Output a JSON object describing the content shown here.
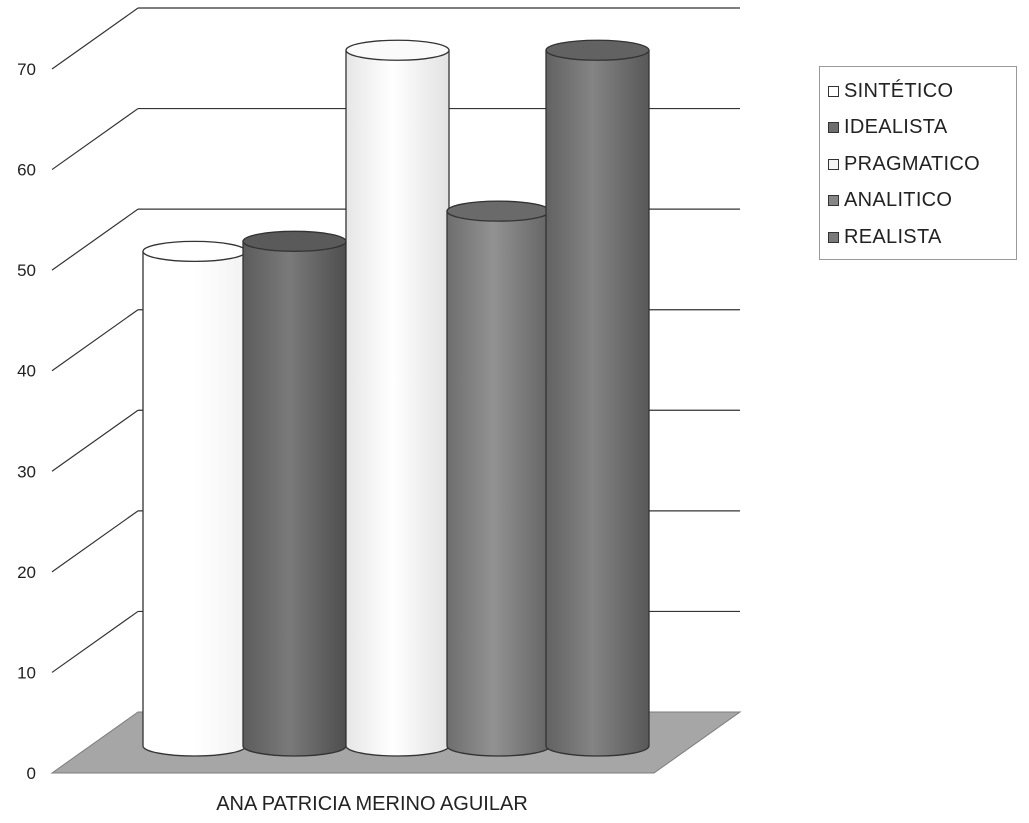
{
  "chart_data": {
    "type": "bar",
    "style": "3d-cylinder",
    "categories": [
      "ANA PATRICIA MERINO AGUILAR"
    ],
    "series": [
      {
        "name": "SINTÉTICO",
        "values": [
          46
        ],
        "color": "#ffffff"
      },
      {
        "name": "IDEALISTA",
        "values": [
          47
        ],
        "color": "#6e6e6e"
      },
      {
        "name": "PRAGMATICO",
        "values": [
          66
        ],
        "color": "#f4f4f4"
      },
      {
        "name": "ANALITICO",
        "values": [
          50
        ],
        "color": "#868686"
      },
      {
        "name": "REALISTA",
        "values": [
          66
        ],
        "color": "#7a7a7a"
      }
    ],
    "yticks": [
      0,
      10,
      20,
      30,
      40,
      50,
      60,
      70
    ],
    "ylim": [
      0,
      70
    ],
    "grid": true,
    "legend_position": "right",
    "floor_color": "#a6a6a6"
  }
}
